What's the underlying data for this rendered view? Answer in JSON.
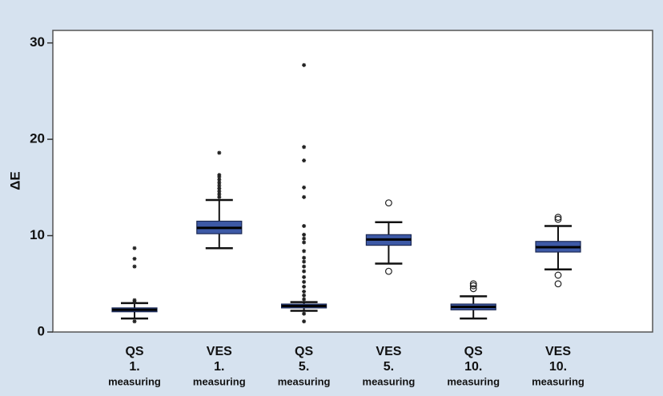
{
  "chart_data": {
    "type": "box",
    "y_label": "ΔE",
    "ylim": [
      0,
      31.3
    ],
    "yticks": [
      0,
      10,
      20,
      30
    ],
    "box_color": "#3d59a6",
    "categories": [
      [
        "QS",
        "1.",
        "measuring"
      ],
      [
        "VES",
        "1.",
        "measuring"
      ],
      [
        "QS",
        "5.",
        "measuring"
      ],
      [
        "VES",
        "5.",
        "measuring"
      ],
      [
        "QS",
        "10.",
        "measuring"
      ],
      [
        "VES",
        "10.",
        "measuring"
      ]
    ],
    "boxes": [
      {
        "whislo": 1.4,
        "q1": 2.1,
        "med": 2.3,
        "q3": 2.5,
        "whishi": 3.0,
        "extremes": [
          8.7,
          7.6,
          6.8,
          3.3,
          3.1,
          1.1
        ]
      },
      {
        "whislo": 8.7,
        "q1": 10.2,
        "med": 10.8,
        "q3": 11.5,
        "whishi": 13.7,
        "extremes": [
          14.0,
          14.3,
          14.6,
          14.9,
          15.2,
          15.5,
          15.8,
          16.1,
          16.3,
          18.6
        ]
      },
      {
        "whislo": 2.2,
        "q1": 2.5,
        "med": 2.7,
        "q3": 2.9,
        "whishi": 3.1,
        "extremes": [
          27.7,
          19.2,
          17.8,
          15.0,
          14.0,
          11.0,
          10.1,
          9.7,
          9.3,
          8.4,
          7.7,
          7.3,
          6.8,
          6.3,
          5.7,
          5.2,
          4.7,
          4.2,
          3.8,
          3.4,
          1.9,
          1.1
        ]
      },
      {
        "whislo": 7.1,
        "q1": 9.0,
        "med": 9.6,
        "q3": 10.1,
        "whishi": 11.4,
        "outliers": [
          13.4,
          6.3
        ]
      },
      {
        "whislo": 1.4,
        "q1": 2.3,
        "med": 2.6,
        "q3": 2.9,
        "whishi": 3.7,
        "outliers": [
          4.5,
          4.8,
          5.0
        ]
      },
      {
        "whislo": 6.5,
        "q1": 8.3,
        "med": 8.8,
        "q3": 9.4,
        "whishi": 11.0,
        "outliers": [
          11.7,
          11.9,
          5.9,
          5.0
        ]
      }
    ]
  }
}
